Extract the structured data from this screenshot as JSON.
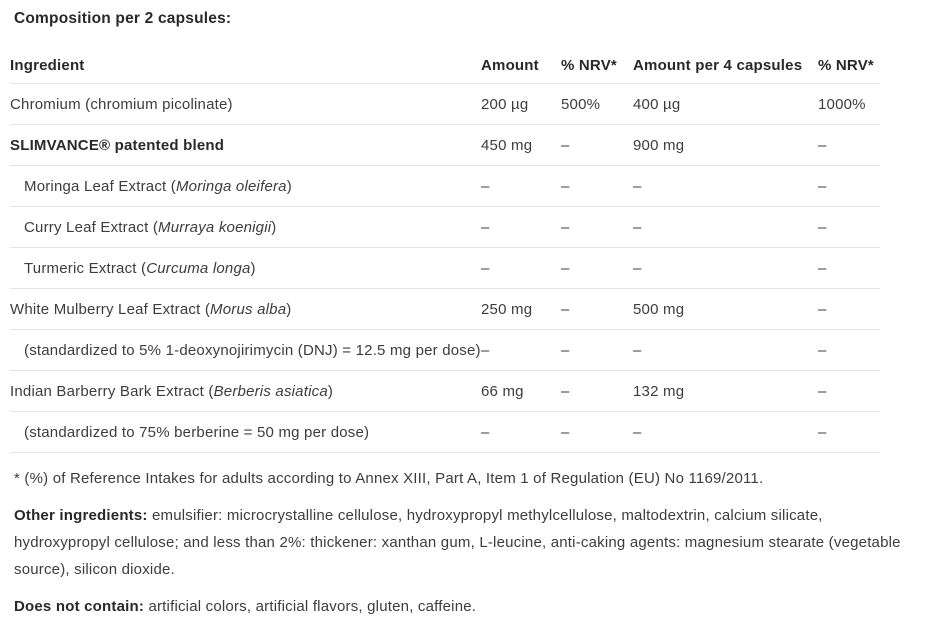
{
  "page": {
    "title": "Composition per 2 capsules:"
  },
  "table": {
    "headers": [
      "Ingredient",
      "Amount",
      "% NRV*",
      "Amount per 4 capsules",
      "% NRV*"
    ],
    "rows": [
      {
        "pre": "Chromium (chromium picolinate)",
        "latin": "",
        "post": "",
        "amount": "200 µg",
        "nrv": "500%",
        "amount4": "400 µg",
        "nrv4": "1000%",
        "bold": false,
        "indent": false
      },
      {
        "pre": "SLIMVANCE® patented blend",
        "latin": "",
        "post": "",
        "amount": "450 mg",
        "nrv": "–",
        "amount4": "900 mg",
        "nrv4": "–",
        "bold": true,
        "indent": false
      },
      {
        "pre": "Moringa Leaf Extract (",
        "latin": "Moringa oleifera",
        "post": ")",
        "amount": "–",
        "nrv": "–",
        "amount4": "–",
        "nrv4": "–",
        "bold": false,
        "indent": true
      },
      {
        "pre": "Curry Leaf Extract (",
        "latin": "Murraya koenigii",
        "post": ")",
        "amount": "–",
        "nrv": "–",
        "amount4": "–",
        "nrv4": "–",
        "bold": false,
        "indent": true
      },
      {
        "pre": "Turmeric Extract (",
        "latin": "Curcuma longa",
        "post": ")",
        "amount": "–",
        "nrv": "–",
        "amount4": "–",
        "nrv4": "–",
        "bold": false,
        "indent": true
      },
      {
        "pre": "White Mulberry Leaf Extract (",
        "latin": "Morus alba",
        "post": ")",
        "amount": "250 mg",
        "nrv": "–",
        "amount4": "500 mg",
        "nrv4": "–",
        "bold": false,
        "indent": false
      },
      {
        "pre": "(standardized to 5% 1-deoxynojirimycin (DNJ) = 12.5 mg per dose)",
        "latin": "",
        "post": "",
        "amount": "–",
        "nrv": "–",
        "amount4": "–",
        "nrv4": "–",
        "bold": false,
        "indent": true
      },
      {
        "pre": "Indian Barberry Bark Extract (",
        "latin": "Berberis asiatica",
        "post": ")",
        "amount": "66 mg",
        "nrv": "–",
        "amount4": "132 mg",
        "nrv4": "–",
        "bold": false,
        "indent": false
      },
      {
        "pre": "(standardized to 75% berberine = 50 mg per dose)",
        "latin": "",
        "post": "",
        "amount": "–",
        "nrv": "–",
        "amount4": "–",
        "nrv4": "–",
        "bold": false,
        "indent": true
      }
    ]
  },
  "footnotes": {
    "nrv_note": "* (%) of Reference Intakes for adults according to Annex XIII, Part A, Item 1 of Regulation (EU) No 1169/2011.",
    "other_label": "Other ingredients:",
    "other_text": " emulsifier: microcrystalline cellulose, hydroxypropyl methylcellulose, maltodextrin, calcium silicate, hydroxypropyl cellulose; and less than 2%: thickener: xanthan gum, L-leucine, anti-caking agents: magnesium stearate (vegetable source), silicon dioxide.",
    "not_contain_label": "Does not contain:",
    "not_contain_text": " artificial colors, artificial flavors, gluten, caffeine."
  },
  "colors": {
    "text": "#3c3c41",
    "heading": "#28282d",
    "divider": "#e4e4e6",
    "background": "#ffffff"
  }
}
